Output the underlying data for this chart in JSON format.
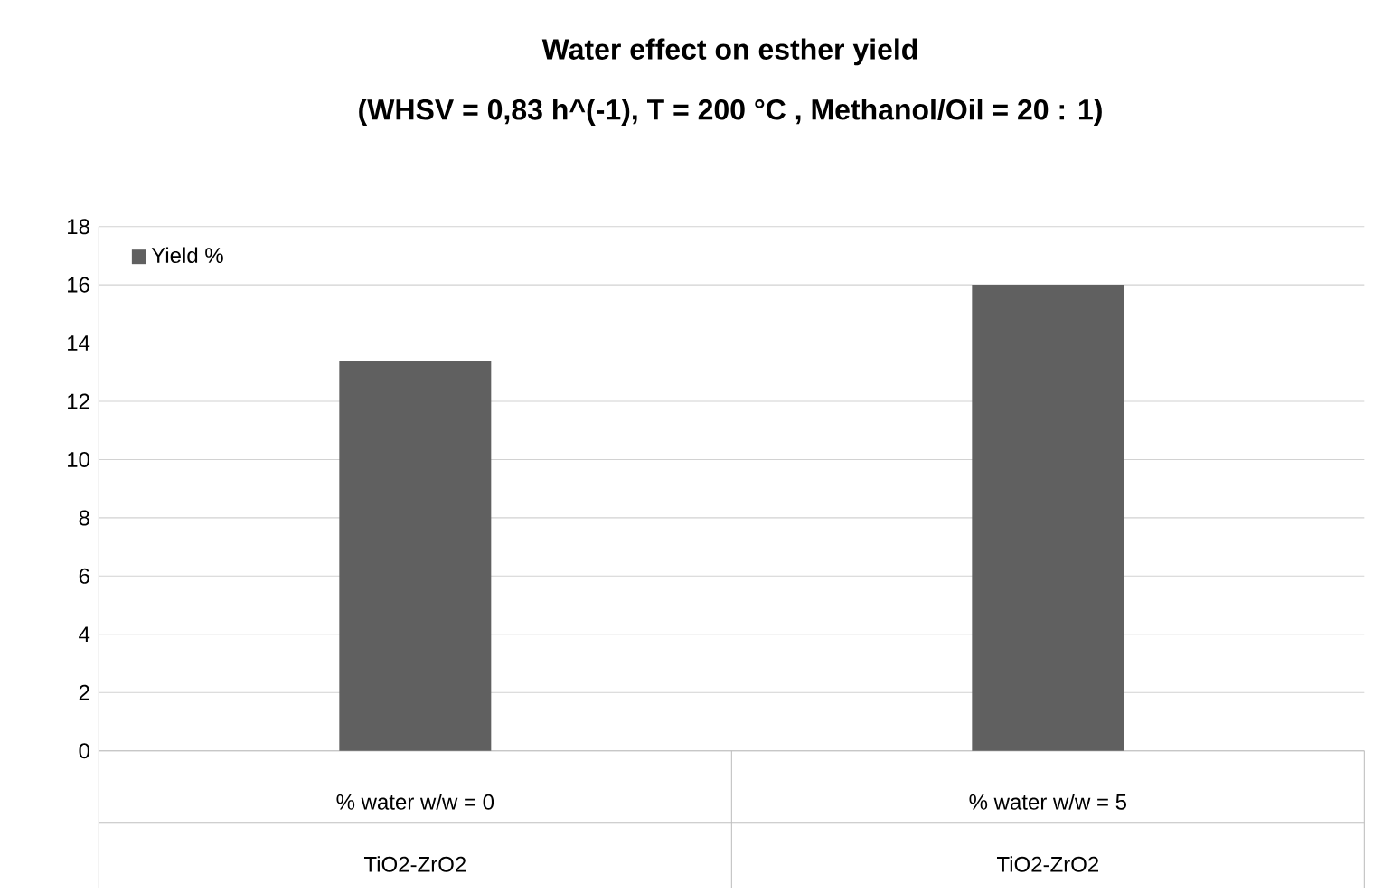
{
  "chart_data": {
    "type": "bar",
    "title": "Water effect on esther yield",
    "subtitle": "(WHSV = 0,83 h^(-1),  T = 200 °C , Methanol/Oil = 20 : 1)",
    "categories": [
      "% water w/w = 0",
      "% water w/w = 5"
    ],
    "series": [
      {
        "name": "Yield %",
        "color": "#606060",
        "values": [
          13.4,
          16.0
        ]
      }
    ],
    "annotations": [
      "TiO2-ZrO2",
      "TiO2-ZrO2"
    ],
    "ylim": [
      0,
      18
    ],
    "yticks": [
      0,
      2,
      4,
      6,
      8,
      10,
      12,
      14,
      16,
      18
    ],
    "grid": "y",
    "legend": "top left"
  }
}
